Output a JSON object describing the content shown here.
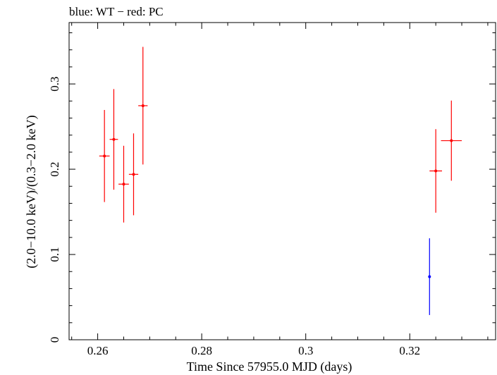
{
  "chart_data": {
    "type": "scatter",
    "title": "blue: WT − red: PC",
    "xlabel": "Time Since 57955.0 MJD (days)",
    "ylabel": "(2.0−10.0 keV)/(0.3−2.0 keV)",
    "xlim": [
      0.2545,
      0.3365
    ],
    "ylim": [
      0,
      0.372
    ],
    "x_ticks": [
      0.26,
      0.28,
      0.3,
      0.32
    ],
    "x_tick_labels": [
      "0.26",
      "0.28",
      "0.3",
      "0.32"
    ],
    "y_ticks": [
      0,
      0.1,
      0.2,
      0.3
    ],
    "y_tick_labels": [
      "0",
      "0.1",
      "0.2",
      "0.3"
    ],
    "grid": false,
    "series": [
      {
        "name": "PC",
        "color": "#ff0000",
        "points": [
          {
            "x": 0.2613,
            "y": 0.2155,
            "xerr": 0.001,
            "yerr": 0.054
          },
          {
            "x": 0.2631,
            "y": 0.235,
            "xerr": 0.0008,
            "yerr": 0.059
          },
          {
            "x": 0.265,
            "y": 0.1825,
            "xerr": 0.001,
            "yerr": 0.045
          },
          {
            "x": 0.2669,
            "y": 0.194,
            "xerr": 0.0009,
            "yerr": 0.048
          },
          {
            "x": 0.2687,
            "y": 0.2745,
            "xerr": 0.0009,
            "yerr": 0.069
          },
          {
            "x": 0.325,
            "y": 0.198,
            "xerr": 0.0012,
            "yerr": 0.049
          },
          {
            "x": 0.328,
            "y": 0.2335,
            "xerr": 0.002,
            "yerr": 0.047
          }
        ]
      },
      {
        "name": "WT",
        "color": "#0000ff",
        "points": [
          {
            "x": 0.3238,
            "y": 0.074,
            "xerr": 0.0001,
            "yerr": 0.045
          }
        ]
      }
    ]
  }
}
